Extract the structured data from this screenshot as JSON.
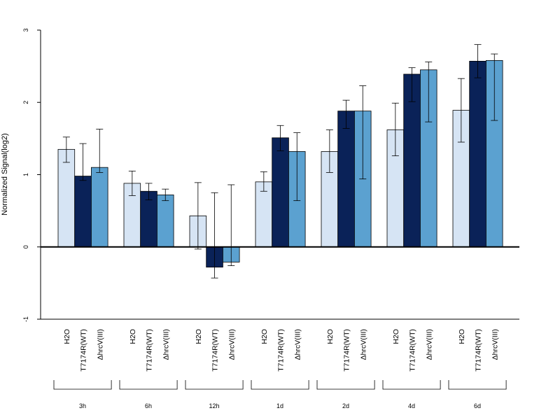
{
  "chart_data": {
    "type": "bar",
    "title": "",
    "xlabel": "",
    "ylabel": "Normalized Signal(log2)",
    "ylim": [
      -1,
      3
    ],
    "yticks": [
      "-1",
      "0",
      "1",
      "2",
      "3"
    ],
    "grid": false,
    "legend": "none",
    "groups": [
      "3h",
      "6h",
      "12h",
      "1d",
      "2d",
      "4d",
      "6d"
    ],
    "series": [
      {
        "name": "H2O",
        "color": "#d6e4f4",
        "values": [
          1.35,
          0.88,
          0.43,
          0.9,
          1.32,
          1.62,
          1.89
        ],
        "err_low": [
          1.17,
          0.71,
          -0.03,
          0.77,
          1.03,
          1.26,
          1.45
        ],
        "err_high": [
          1.52,
          1.05,
          0.89,
          1.04,
          1.62,
          1.99,
          2.33
        ]
      },
      {
        "name": "T7174R(WT)",
        "color": "#0a2258",
        "values": [
          0.98,
          0.77,
          -0.28,
          1.51,
          1.88,
          2.39,
          2.57
        ],
        "err_low": [
          0.92,
          0.65,
          -0.43,
          1.33,
          1.64,
          2.01,
          2.34
        ],
        "err_high": [
          1.43,
          0.88,
          0.75,
          1.68,
          2.03,
          2.48,
          2.8
        ]
      },
      {
        "name": "ΔhrcV(III)",
        "color": "#5ba1d0",
        "values": [
          1.1,
          0.72,
          -0.21,
          1.32,
          1.88,
          2.45,
          2.58
        ],
        "err_low": [
          1.03,
          0.64,
          -0.26,
          0.64,
          0.94,
          1.73,
          1.75
        ],
        "err_high": [
          1.63,
          0.8,
          0.86,
          1.58,
          2.23,
          2.56,
          2.67
        ]
      }
    ]
  }
}
